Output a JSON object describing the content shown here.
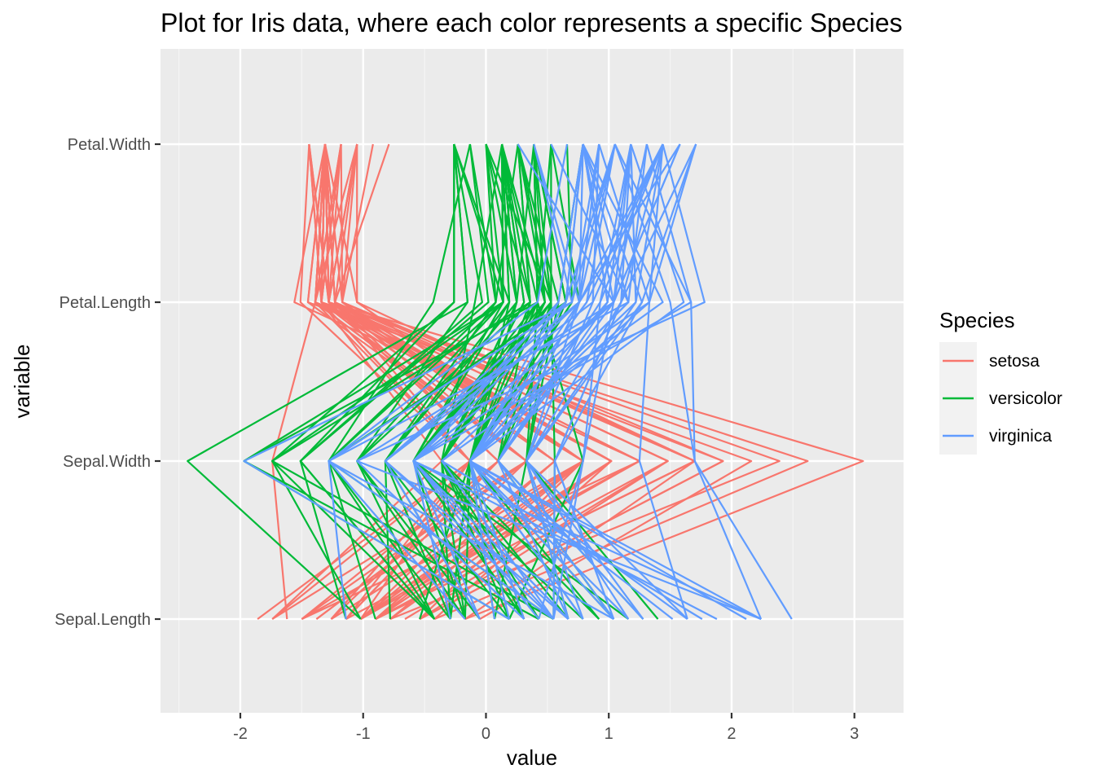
{
  "chart_data": {
    "type": "line",
    "subtype": "parallel-coordinates",
    "title": "Plot for Iris data, where each color represents a specific Species",
    "xlabel": "value",
    "ylabel": "variable",
    "xlim": [
      -2.65,
      3.4
    ],
    "x_ticks": [
      -2,
      -1,
      0,
      1,
      2,
      3
    ],
    "x_tick_labels": [
      "-2",
      "-1",
      "0",
      "1",
      "2",
      "3"
    ],
    "categories": [
      "Sepal.Length",
      "Sepal.Width",
      "Petal.Length",
      "Petal.Width"
    ],
    "grid": true,
    "legend_position": "right",
    "legend_title": "Species",
    "series": [
      {
        "name": "setosa",
        "color": "#F8766D",
        "lines": [
          [
            -0.9,
            1.02,
            -1.34,
            -1.31
          ],
          [
            -1.14,
            -0.13,
            -1.34,
            -1.31
          ],
          [
            -1.38,
            0.33,
            -1.39,
            -1.31
          ],
          [
            -1.5,
            0.1,
            -1.28,
            -1.31
          ],
          [
            -1.02,
            1.25,
            -1.34,
            -1.31
          ],
          [
            -0.54,
            1.93,
            -1.17,
            -1.05
          ],
          [
            -1.5,
            0.79,
            -1.34,
            -1.18
          ],
          [
            -1.02,
            0.79,
            -1.28,
            -1.31
          ],
          [
            -1.74,
            -0.36,
            -1.34,
            -1.31
          ],
          [
            -1.14,
            0.1,
            -1.28,
            -1.44
          ],
          [
            -0.54,
            1.48,
            -1.28,
            -1.31
          ],
          [
            -1.26,
            0.79,
            -1.23,
            -1.31
          ],
          [
            -1.26,
            -0.13,
            -1.34,
            -1.44
          ],
          [
            -1.86,
            -0.13,
            -1.51,
            -1.44
          ],
          [
            -0.05,
            2.16,
            -1.45,
            -1.31
          ],
          [
            -0.17,
            3.07,
            -1.28,
            -1.05
          ],
          [
            -0.54,
            1.93,
            -1.39,
            -1.05
          ],
          [
            -0.9,
            1.02,
            -1.34,
            -1.18
          ],
          [
            -0.17,
            1.7,
            -1.17,
            -1.18
          ],
          [
            -0.9,
            1.7,
            -1.28,
            -1.18
          ],
          [
            -0.54,
            0.79,
            -1.17,
            -1.31
          ],
          [
            -0.9,
            1.48,
            -1.28,
            -1.05
          ],
          [
            -1.5,
            1.25,
            -1.56,
            -1.31
          ],
          [
            -0.9,
            0.56,
            -1.17,
            -0.92
          ],
          [
            -1.26,
            0.79,
            -1.05,
            -1.31
          ],
          [
            -1.02,
            -0.13,
            -1.23,
            -1.31
          ],
          [
            -1.02,
            0.79,
            -1.23,
            -1.05
          ],
          [
            -0.78,
            1.02,
            -1.28,
            -1.31
          ],
          [
            -0.78,
            0.79,
            -1.34,
            -1.31
          ],
          [
            -1.38,
            0.33,
            -1.23,
            -1.31
          ],
          [
            -1.26,
            0.1,
            -1.23,
            -1.31
          ],
          [
            -0.54,
            0.79,
            -1.28,
            -1.05
          ],
          [
            -0.78,
            2.39,
            -1.28,
            -1.44
          ],
          [
            -0.42,
            2.62,
            -1.34,
            -1.31
          ],
          [
            -1.14,
            0.1,
            -1.28,
            -1.31
          ],
          [
            -1.02,
            0.33,
            -1.45,
            -1.31
          ],
          [
            -0.42,
            1.02,
            -1.39,
            -1.31
          ],
          [
            -1.14,
            1.25,
            -1.34,
            -1.44
          ],
          [
            -1.74,
            -0.13,
            -1.39,
            -1.31
          ],
          [
            -0.9,
            0.79,
            -1.28,
            -1.31
          ],
          [
            -1.02,
            1.02,
            -1.39,
            -1.18
          ],
          [
            -1.62,
            -1.74,
            -1.39,
            -1.18
          ],
          [
            -1.74,
            0.33,
            -1.39,
            -1.31
          ],
          [
            -1.02,
            1.02,
            -1.23,
            -0.79
          ],
          [
            -0.9,
            1.7,
            -1.05,
            -1.05
          ],
          [
            -1.26,
            -0.13,
            -1.34,
            -1.18
          ],
          [
            -0.9,
            1.7,
            -1.23,
            -1.31
          ],
          [
            -1.5,
            0.33,
            -1.34,
            -1.31
          ],
          [
            -0.66,
            1.48,
            -1.28,
            -1.31
          ],
          [
            -1.02,
            0.56,
            -1.34,
            -1.31
          ]
        ]
      },
      {
        "name": "versicolor",
        "color": "#00BA38",
        "lines": [
          [
            1.4,
            0.33,
            0.53,
            0.26
          ],
          [
            0.67,
            0.33,
            0.42,
            0.39
          ],
          [
            1.28,
            0.1,
            0.65,
            0.39
          ],
          [
            -0.42,
            -1.74,
            0.14,
            0.13
          ],
          [
            0.79,
            -0.59,
            0.48,
            0.39
          ],
          [
            -0.17,
            -0.59,
            0.42,
            0.13
          ],
          [
            0.55,
            0.56,
            0.53,
            0.53
          ],
          [
            -1.14,
            -1.51,
            -0.26,
            -0.26
          ],
          [
            0.92,
            -0.36,
            0.48,
            0.13
          ],
          [
            -0.78,
            -0.82,
            0.08,
            0.26
          ],
          [
            -1.02,
            -2.43,
            -0.15,
            -0.26
          ],
          [
            0.07,
            -0.13,
            0.25,
            0.39
          ],
          [
            0.19,
            -1.97,
            0.14,
            -0.26
          ],
          [
            0.31,
            -0.36,
            0.53,
            0.26
          ],
          [
            -0.29,
            -0.36,
            -0.09,
            0.13
          ],
          [
            1.04,
            0.1,
            0.36,
            0.26
          ],
          [
            -0.29,
            -0.13,
            0.42,
            0.39
          ],
          [
            -0.05,
            -0.82,
            0.19,
            -0.26
          ],
          [
            0.43,
            -1.97,
            0.42,
            0.39
          ],
          [
            -0.29,
            -1.28,
            0.08,
            -0.13
          ],
          [
            0.07,
            0.33,
            0.59,
            0.79
          ],
          [
            0.31,
            -0.59,
            0.14,
            0.13
          ],
          [
            0.55,
            -1.28,
            0.65,
            0.39
          ],
          [
            0.31,
            -0.59,
            0.53,
            0.0
          ],
          [
            0.67,
            -0.36,
            0.31,
            0.13
          ],
          [
            0.92,
            -0.13,
            0.36,
            0.26
          ],
          [
            1.16,
            -0.59,
            0.59,
            0.26
          ],
          [
            1.04,
            -0.13,
            0.7,
            0.66
          ],
          [
            0.19,
            -0.36,
            0.42,
            0.39
          ],
          [
            -0.17,
            -1.05,
            -0.15,
            -0.26
          ],
          [
            -0.42,
            -1.51,
            0.02,
            -0.13
          ],
          [
            -0.42,
            -1.51,
            -0.03,
            -0.26
          ],
          [
            -0.05,
            -0.82,
            0.08,
            0.0
          ],
          [
            0.19,
            -0.82,
            0.76,
            0.53
          ],
          [
            -0.54,
            -0.13,
            0.42,
            0.39
          ],
          [
            0.19,
            0.79,
            0.42,
            0.53
          ],
          [
            1.04,
            0.1,
            0.53,
            0.39
          ],
          [
            0.55,
            -1.74,
            0.36,
            0.13
          ],
          [
            -0.29,
            -0.13,
            0.19,
            0.13
          ],
          [
            -0.42,
            -1.28,
            0.14,
            0.13
          ],
          [
            -0.42,
            -1.05,
            0.36,
            0.0
          ],
          [
            0.31,
            -0.13,
            0.48,
            0.26
          ],
          [
            -0.05,
            -1.05,
            0.14,
            0.0
          ],
          [
            -1.02,
            -1.74,
            -0.26,
            -0.26
          ],
          [
            -0.29,
            -0.82,
            0.25,
            0.13
          ],
          [
            -0.17,
            -0.13,
            0.25,
            0.0
          ],
          [
            -0.17,
            -0.36,
            0.25,
            0.13
          ],
          [
            0.43,
            -0.36,
            0.31,
            0.13
          ],
          [
            -0.9,
            -1.28,
            -0.43,
            -0.13
          ],
          [
            -0.17,
            -0.59,
            0.19,
            0.13
          ]
        ]
      },
      {
        "name": "virginica",
        "color": "#619CFF",
        "lines": [
          [
            0.55,
            0.56,
            1.27,
            1.71
          ],
          [
            -0.05,
            -0.82,
            0.76,
            0.92
          ],
          [
            1.52,
            -0.13,
            1.22,
            1.18
          ],
          [
            0.55,
            -0.36,
            1.04,
            0.79
          ],
          [
            0.79,
            -0.13,
            1.16,
            1.31
          ],
          [
            2.12,
            -0.13,
            1.61,
            1.18
          ],
          [
            -1.14,
            -1.28,
            0.42,
            0.66
          ],
          [
            1.76,
            -0.36,
            1.44,
            0.79
          ],
          [
            1.04,
            -1.28,
            1.16,
            0.79
          ],
          [
            1.64,
            1.25,
            1.33,
            1.71
          ],
          [
            0.79,
            0.33,
            0.76,
            1.05
          ],
          [
            0.67,
            -0.82,
            0.87,
            0.92
          ],
          [
            1.16,
            -0.13,
            0.99,
            1.18
          ],
          [
            -0.17,
            -1.28,
            0.7,
            1.05
          ],
          [
            -0.05,
            -0.59,
            0.76,
            1.58
          ],
          [
            0.67,
            0.33,
            0.87,
            1.44
          ],
          [
            0.79,
            -0.13,
            0.99,
            0.79
          ],
          [
            2.24,
            1.7,
            1.67,
            1.31
          ],
          [
            2.24,
            -1.05,
            1.78,
            1.44
          ],
          [
            0.19,
            -1.97,
            0.7,
            0.39
          ],
          [
            1.28,
            0.33,
            1.1,
            1.44
          ],
          [
            -0.29,
            -0.59,
            0.65,
            1.05
          ],
          [
            2.24,
            -0.59,
            1.67,
            1.05
          ],
          [
            0.55,
            -0.82,
            0.65,
            0.79
          ],
          [
            1.04,
            0.56,
            1.1,
            1.18
          ],
          [
            1.64,
            0.33,
            1.27,
            0.79
          ],
          [
            0.43,
            -0.59,
            0.59,
            0.79
          ],
          [
            0.31,
            -0.13,
            0.65,
            0.79
          ],
          [
            0.67,
            -0.59,
            1.04,
            1.18
          ],
          [
            1.64,
            -0.13,
            1.16,
            0.53
          ],
          [
            1.88,
            -0.59,
            1.33,
            0.92
          ],
          [
            2.49,
            1.7,
            1.5,
            1.05
          ],
          [
            0.67,
            -0.59,
            1.04,
            1.31
          ],
          [
            0.55,
            -0.59,
            0.76,
            0.39
          ],
          [
            0.31,
            -1.05,
            1.04,
            0.26
          ],
          [
            2.24,
            -0.13,
            1.33,
            1.44
          ],
          [
            0.55,
            0.79,
            1.04,
            1.58
          ],
          [
            0.67,
            0.1,
            0.99,
            0.79
          ],
          [
            0.19,
            -0.13,
            0.59,
            0.79
          ],
          [
            1.28,
            0.1,
            0.93,
            1.18
          ],
          [
            1.04,
            0.1,
            1.04,
            1.58
          ],
          [
            1.28,
            0.1,
            0.76,
            1.44
          ],
          [
            -0.05,
            -0.82,
            0.76,
            0.92
          ],
          [
            1.16,
            0.33,
            1.22,
            1.44
          ],
          [
            1.04,
            0.56,
            1.1,
            1.71
          ],
          [
            1.04,
            -0.13,
            0.82,
            1.44
          ],
          [
            0.55,
            -1.28,
            0.7,
            0.92
          ],
          [
            0.79,
            -0.13,
            0.82,
            1.05
          ],
          [
            0.43,
            0.79,
            0.93,
            1.44
          ],
          [
            0.07,
            -0.13,
            0.76,
            0.79
          ]
        ]
      }
    ]
  }
}
